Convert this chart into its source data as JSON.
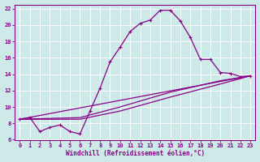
{
  "xlabel": "Windchill (Refroidissement éolien,°C)",
  "bg_color": "#cde9e8",
  "grid_color": "#b8d8d8",
  "line_color": "#880088",
  "xlim": [
    -0.5,
    23.5
  ],
  "ylim": [
    6,
    22.5
  ],
  "xticks": [
    0,
    1,
    2,
    3,
    4,
    5,
    6,
    7,
    8,
    9,
    10,
    11,
    12,
    13,
    14,
    15,
    16,
    17,
    18,
    19,
    20,
    21,
    22,
    23
  ],
  "yticks": [
    6,
    8,
    10,
    12,
    14,
    16,
    18,
    20,
    22
  ],
  "curve1_x": [
    0,
    1,
    2,
    3,
    4,
    5,
    6,
    7,
    8,
    9,
    10,
    11,
    12,
    13,
    14,
    15,
    16,
    17,
    18,
    19,
    20,
    21,
    22,
    23
  ],
  "curve1_y": [
    8.5,
    8.7,
    7.0,
    7.5,
    7.8,
    7.0,
    6.7,
    9.5,
    12.3,
    15.5,
    17.3,
    19.2,
    20.2,
    20.6,
    21.8,
    21.8,
    20.5,
    18.5,
    15.8,
    15.8,
    14.2,
    14.1,
    13.7,
    13.8
  ],
  "curve2_x": [
    0,
    6,
    10,
    15,
    20,
    23
  ],
  "curve2_y": [
    8.5,
    8.5,
    9.5,
    11.2,
    12.8,
    13.8
  ],
  "curve3_x": [
    0,
    6,
    10,
    15,
    20,
    23
  ],
  "curve3_y": [
    8.5,
    8.7,
    10.0,
    11.8,
    13.2,
    13.8
  ],
  "curve4_x": [
    0,
    23
  ],
  "curve4_y": [
    8.5,
    13.8
  ]
}
